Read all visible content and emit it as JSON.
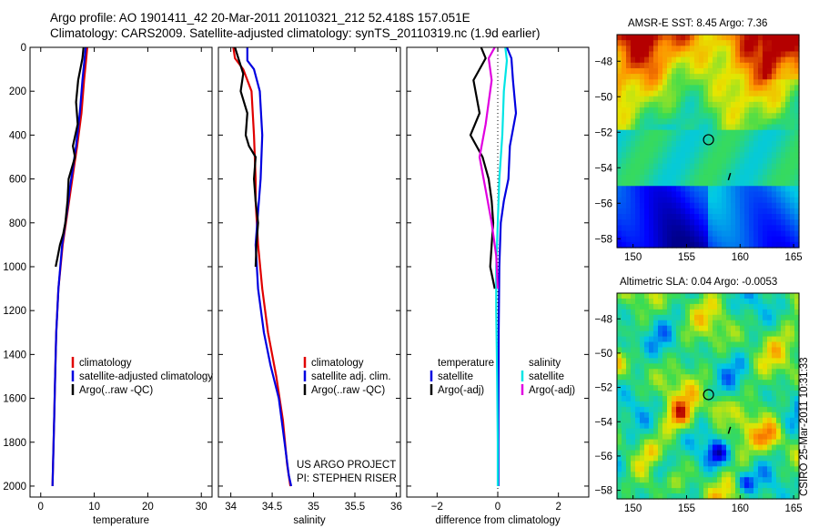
{
  "header": {
    "line1": "Argo profile: AO 1901411_42 20-Mar-2011 20110321_212 52.418S 157.051E",
    "line2": "Climatology: CARS2009. Satellite-adjusted climatology: synTS_20110319.nc (1.9d earlier)"
  },
  "credits": {
    "project": "US ARGO PROJECT",
    "pi": "PI: STEPHEN RISER",
    "stamp": "CSIRO 25-Mar-2011 10:31:33"
  },
  "colors": {
    "climatology": "#e00000",
    "satellite": "#0000e0",
    "argo": "#000000",
    "sal_sat": "#00e5e5",
    "sal_argo": "#e000e0"
  },
  "chart_data": [
    {
      "type": "line",
      "name": "temperature profile",
      "xlabel": "temperature",
      "ylabel": "",
      "xlim": [
        -2,
        32
      ],
      "ylim": [
        2050,
        0
      ],
      "xticks": [
        0,
        10,
        20,
        30
      ],
      "yticks": [
        0,
        200,
        400,
        600,
        800,
        1000,
        1200,
        1400,
        1600,
        1800,
        2000
      ],
      "legend": [
        "climatology",
        "satellite-adjusted climatology",
        "Argo(..raw -QC)"
      ],
      "series": [
        {
          "name": "climatology",
          "color": "#e00000",
          "x": [
            8.7,
            8.5,
            8.1,
            7.6,
            6.8,
            6.2,
            5.6,
            5.0,
            4.1,
            3.3,
            2.9,
            2.7,
            2.5,
            2.3,
            2.2
          ],
          "y": [
            0,
            50,
            150,
            300,
            450,
            550,
            650,
            750,
            900,
            1100,
            1300,
            1500,
            1700,
            1900,
            2000
          ]
        },
        {
          "name": "satellite-adjusted climatology",
          "color": "#0000e0",
          "x": [
            8.4,
            8.2,
            7.8,
            7.3,
            6.6,
            6.0,
            5.4,
            4.9,
            4.0,
            3.3,
            2.9,
            2.7,
            2.5,
            2.3,
            2.2
          ],
          "y": [
            0,
            50,
            150,
            300,
            450,
            550,
            650,
            750,
            900,
            1100,
            1300,
            1500,
            1700,
            1900,
            2000
          ]
        },
        {
          "name": "Argo(..raw -QC)",
          "color": "#000000",
          "x": [
            8.0,
            7.8,
            7.0,
            6.6,
            6.9,
            6.0,
            6.4,
            5.2,
            5.0,
            4.6,
            4.2,
            3.6,
            3.2,
            2.8
          ],
          "y": [
            0,
            50,
            150,
            250,
            350,
            450,
            500,
            600,
            700,
            800,
            850,
            900,
            950,
            1000
          ]
        }
      ]
    },
    {
      "type": "line",
      "name": "salinity profile",
      "xlabel": "salinity",
      "ylabel": "",
      "xlim": [
        33.85,
        36.05
      ],
      "ylim": [
        2050,
        0
      ],
      "xticks": [
        34,
        34.5,
        35,
        35.5,
        36
      ],
      "legend": [
        "climatology",
        "satellite adj. clim.",
        "Argo(..raw -QC)"
      ],
      "series": [
        {
          "name": "climatology",
          "color": "#e00000",
          "x": [
            34.03,
            34.05,
            34.15,
            34.25,
            34.28,
            34.3,
            34.3,
            34.33,
            34.38,
            34.45,
            34.55,
            34.63,
            34.68,
            34.72
          ],
          "y": [
            0,
            50,
            100,
            200,
            400,
            600,
            700,
            900,
            1100,
            1300,
            1500,
            1700,
            1900,
            2000
          ]
        },
        {
          "name": "satellite adj. clim.",
          "color": "#0000e0",
          "x": [
            34.2,
            34.2,
            34.28,
            34.35,
            34.38,
            34.36,
            34.33,
            34.3,
            34.33,
            34.4,
            34.48,
            34.58,
            34.65,
            34.7,
            34.73
          ],
          "y": [
            0,
            60,
            100,
            200,
            400,
            600,
            750,
            900,
            1100,
            1300,
            1450,
            1600,
            1800,
            1950,
            2000
          ]
        },
        {
          "name": "Argo(..raw -QC)",
          "color": "#000000",
          "x": [
            34.05,
            34.1,
            34.15,
            34.12,
            34.2,
            34.18,
            34.22,
            34.3,
            34.28,
            34.3,
            34.33,
            34.31,
            34.3
          ],
          "y": [
            0,
            60,
            120,
            200,
            300,
            400,
            450,
            500,
            600,
            700,
            800,
            900,
            1000
          ]
        }
      ]
    },
    {
      "type": "line",
      "name": "difference profile",
      "xlabel": "difference from climatology",
      "ylabel": "",
      "xlim": [
        -3,
        3
      ],
      "ylim": [
        2050,
        0
      ],
      "xticks": [
        -2,
        0,
        2
      ],
      "legend_left_title": "temperature",
      "legend_right_title": "salinity",
      "legend": [
        "satellite",
        "Argo(-adj)",
        "satellite",
        "Argo(-adj)"
      ],
      "series": [
        {
          "name": "temperature satellite",
          "color": "#0000e0",
          "x": [
            0.3,
            0.45,
            0.5,
            0.6,
            0.4,
            0.35,
            0.2,
            0.1,
            0.05,
            0.03,
            0.02,
            0.02
          ],
          "y": [
            0,
            50,
            150,
            300,
            450,
            600,
            700,
            800,
            1000,
            1300,
            1700,
            2000
          ]
        },
        {
          "name": "temperature Argo(-adj)",
          "color": "#000000",
          "x": [
            -0.55,
            -0.4,
            -0.8,
            -0.6,
            -0.9,
            -0.5,
            -0.3,
            -0.2,
            -0.15,
            -0.2,
            -0.25,
            -0.1
          ],
          "y": [
            0,
            50,
            150,
            300,
            400,
            500,
            600,
            700,
            800,
            900,
            1000,
            1100
          ]
        },
        {
          "name": "salinity satellite",
          "color": "#00e5e5",
          "x": [
            0.25,
            0.3,
            0.2,
            0.15,
            0.05,
            0.0,
            -0.05,
            -0.05,
            -0.02,
            0.0,
            0.0
          ],
          "y": [
            0,
            60,
            200,
            400,
            600,
            800,
            1000,
            1200,
            1500,
            1800,
            2000
          ]
        },
        {
          "name": "salinity Argo(-adj)",
          "color": "#e000e0",
          "x": [
            -0.1,
            -0.3,
            -0.2,
            -0.4,
            -0.6,
            -0.4,
            -0.2,
            -0.05,
            0.0
          ],
          "y": [
            0,
            50,
            150,
            350,
            500,
            650,
            800,
            950,
            1100
          ]
        }
      ]
    },
    {
      "type": "heatmap",
      "name": "AMSR-E SST map",
      "title": "AMSR-E SST: 8.45 Argo: 7.36",
      "xlim": [
        148.5,
        165.5
      ],
      "ylim": [
        -58.5,
        -46.5
      ],
      "xticks": [
        150,
        155,
        160,
        165
      ],
      "yticks": [
        -48,
        -50,
        -52,
        -54,
        -56,
        -58
      ],
      "marker": {
        "lon": 157.05,
        "lat": -52.42
      }
    },
    {
      "type": "heatmap",
      "name": "Altimetric SLA map",
      "title": "Altimetric SLA: 0.04 Argo: -0.0053",
      "xlim": [
        148.5,
        165.5
      ],
      "ylim": [
        -58.5,
        -46.5
      ],
      "xticks": [
        150,
        155,
        160,
        165
      ],
      "yticks": [
        -48,
        -50,
        -52,
        -54,
        -56,
        -58
      ],
      "marker": {
        "lon": 157.05,
        "lat": -52.42
      }
    }
  ]
}
